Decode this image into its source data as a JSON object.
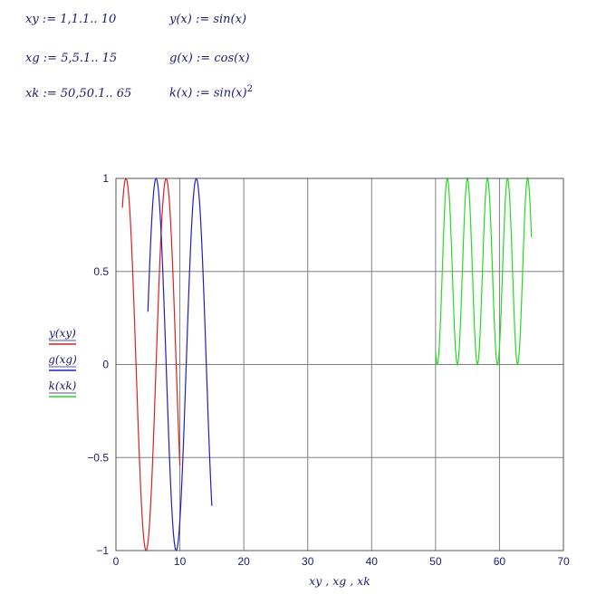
{
  "definitions": {
    "xy_range": "xy := 1,1.1.. 10",
    "xg_range": "xg := 5,5.1.. 15",
    "xk_range": "xk := 50,50.1.. 65",
    "y_func": "y(x) := sin(x)",
    "g_func": "g(x) := cos(x)",
    "k_func": "k(x) := sin(x)",
    "k_exponent": "2"
  },
  "chart_data": {
    "type": "line",
    "xlabel": "xy , xg , xk",
    "xlim": [
      0,
      70
    ],
    "ylim": [
      -1,
      1
    ],
    "x_ticks": [
      "0",
      "10",
      "20",
      "30",
      "40",
      "50",
      "60",
      "70"
    ],
    "y_ticks": [
      "1",
      "0.5",
      "0",
      "-0.5",
      "-1"
    ],
    "grid": true,
    "legend_position": "left",
    "series": [
      {
        "name": "y(xy)",
        "function": "sin",
        "x_start": 1,
        "x_end": 10,
        "x_step": 0.1,
        "color": "#e01e1e"
      },
      {
        "name": "g(xg)",
        "function": "cos",
        "x_start": 5,
        "x_end": 15,
        "x_step": 0.1,
        "color": "#1e1ec8"
      },
      {
        "name": "k(xk)",
        "function": "sin_squared",
        "x_start": 50,
        "x_end": 65,
        "x_step": 0.1,
        "color": "#22dd22"
      }
    ]
  }
}
